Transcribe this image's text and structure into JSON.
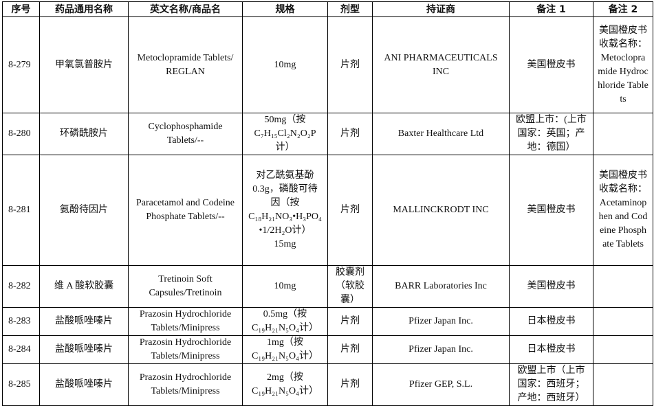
{
  "table": {
    "header": [
      "序号",
      "药品通用名称",
      "英文名称/商品名",
      "规格",
      "剂型",
      "持证商",
      "备注 1",
      "备注 2"
    ],
    "rows": [
      {
        "no": "8-279",
        "name": "甲氧氯普胺片",
        "en": "Metoclopramide Tablets/ REGLAN",
        "spec": "10mg",
        "form": "片剂",
        "holder": "ANI PHARMACEUTICALS INC",
        "note1": "美国橙皮书",
        "note2": "美国橙皮书收载名称：Metoclopramide Hydrochloride Tablets"
      },
      {
        "no": "8-280",
        "name": "环磷酰胺片",
        "en": "Cyclophosphamide Tablets/--",
        "spec": "50mg（按C₇H₁₅Cl₂N₂O₂P计）",
        "form": "片剂",
        "holder": "Baxter Healthcare Ltd",
        "note1": "欧盟上市：(上市国家：英国；产地：德国）"
      },
      {
        "no": "8-281",
        "name": "氨酚待因片",
        "en": "Paracetamol and Codeine Phosphate Tablets/--",
        "spec": "对乙酰氨基酚0.3g，磷酸可待因（按C₁₈H₂₁NO₃•H₃PO₄•1/2H₂O计）15mg",
        "form": "片剂",
        "holder": "MALLINCKRODT INC",
        "note1": "美国橙皮书",
        "note2": "美国橙皮书收载名称：Acetaminophen and Codeine Phosphate Tablets"
      },
      {
        "no": "8-282",
        "name": "维 A 酸软胶囊",
        "en": "Tretinoin Soft Capsules/Tretinoin",
        "spec": "10mg",
        "form": "胶囊剂（软胶囊）",
        "holder": "BARR Laboratories Inc",
        "note1": "美国橙皮书"
      },
      {
        "no": "8-283",
        "name": "盐酸哌唑嗪片",
        "en": "Prazosin Hydrochloride Tablets/Minipress",
        "spec": "0.5mg（按C₁₉H₂₁N₅O₄计）",
        "form": "片剂",
        "holder": "Pfizer Japan Inc.",
        "note1": "日本橙皮书"
      },
      {
        "no": "8-284",
        "name": "盐酸哌唑嗪片",
        "en": "Prazosin Hydrochloride Tablets/Minipress",
        "spec": "1mg（按C₁₉H₂₁N₅O₄计）",
        "form": "片剂",
        "holder": "Pfizer Japan Inc.",
        "note1": "日本橙皮书"
      },
      {
        "no": "8-285",
        "name": "盐酸哌唑嗪片",
        "en": "Prazosin Hydrochloride Tablets/Minipress",
        "spec": "2mg（按C₁₉H₂₁N₅O₄计）",
        "form": "片剂",
        "holder": "Pfizer GEP, S.L.",
        "note1": "欧盟上市（上市国家：西班牙；产地：西班牙）"
      }
    ]
  }
}
